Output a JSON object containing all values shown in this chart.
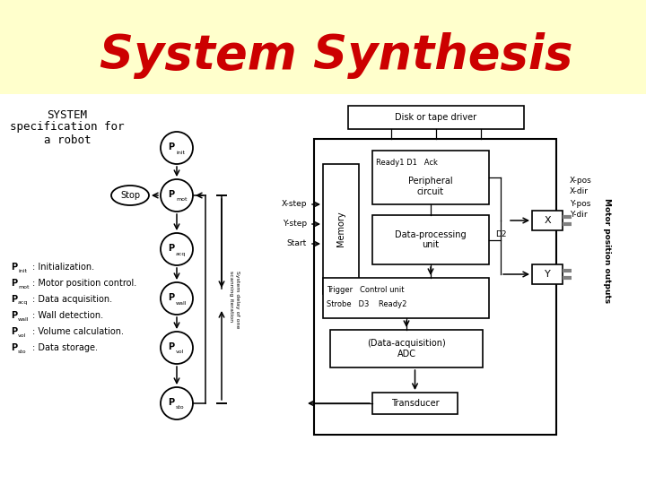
{
  "title": "System Synthesis",
  "title_color": "#cc0000",
  "title_fontsize": 38,
  "bg_top_color": "#ffffcc",
  "bg_bottom_color": "#ffffff",
  "subtitle_lines": [
    "SYSTEM",
    "specification for",
    "a robot"
  ],
  "subtitle_fontsize": 9,
  "legend_items": [
    {
      "sub": "init",
      "desc": "Initialization."
    },
    {
      "sub": "mot",
      "desc": "Motor position control."
    },
    {
      "sub": "acq",
      "desc": "Data acquisition."
    },
    {
      "sub": "wall",
      "desc": "Wall detection."
    },
    {
      "sub": "vol",
      "desc": "Volume calculation."
    },
    {
      "sub": "sto",
      "desc": "Data storage."
    }
  ]
}
